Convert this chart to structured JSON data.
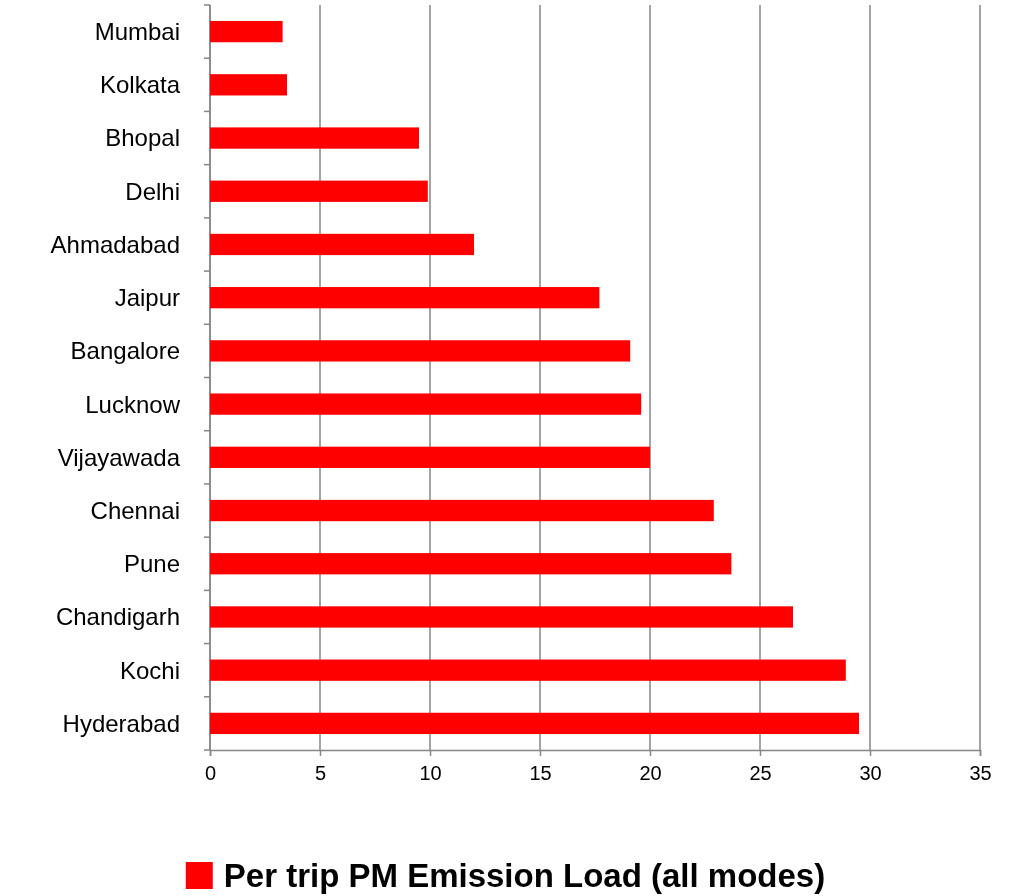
{
  "chart_data": {
    "type": "bar",
    "orientation": "horizontal",
    "categories": [
      "Mumbai",
      "Kolkata",
      "Bhopal",
      "Delhi",
      "Ahmadabad",
      "Jaipur",
      "Bangalore",
      "Lucknow",
      "Vijayawada",
      "Chennai",
      "Pune",
      "Chandigarh",
      "Kochi",
      "Hyderabad"
    ],
    "series": [
      {
        "name": "Per trip PM Emission Load (all modes)",
        "color": "#ff0000",
        "values": [
          3.3,
          3.5,
          9.5,
          9.9,
          12.0,
          17.7,
          19.1,
          19.6,
          20.0,
          22.9,
          23.7,
          26.5,
          28.9,
          29.5
        ]
      }
    ],
    "xlim": [
      0,
      35
    ],
    "xticks": [
      0,
      5,
      10,
      15,
      20,
      25,
      30,
      35
    ],
    "grid": "x",
    "legend": "bottom"
  }
}
